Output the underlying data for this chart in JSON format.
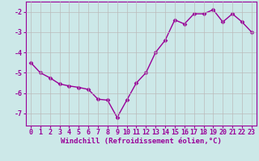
{
  "x": [
    0,
    1,
    2,
    3,
    4,
    5,
    6,
    7,
    8,
    9,
    10,
    11,
    12,
    13,
    14,
    15,
    16,
    17,
    18,
    19,
    20,
    21,
    22,
    23
  ],
  "y": [
    -4.5,
    -5.0,
    -5.25,
    -5.55,
    -5.65,
    -5.72,
    -5.82,
    -6.3,
    -6.35,
    -7.2,
    -6.35,
    -5.5,
    -5.0,
    -4.0,
    -3.4,
    -2.4,
    -2.6,
    -2.1,
    -2.1,
    -1.9,
    -2.5,
    -2.1,
    -2.5,
    -3.0
  ],
  "line_color": "#990099",
  "marker": "D",
  "markersize": 2.5,
  "linewidth": 1.0,
  "bg_color": "#cce8e8",
  "grid_color": "#bbbbbb",
  "xlabel": "Windchill (Refroidissement éolien,°C)",
  "xlabel_color": "#990099",
  "xlabel_fontsize": 6.5,
  "tick_label_color": "#990099",
  "tick_fontsize": 6,
  "ylim": [
    -7.6,
    -1.5
  ],
  "yticks": [
    -7,
    -6,
    -5,
    -4,
    -3,
    -2
  ],
  "xlim": [
    -0.5,
    23.5
  ],
  "xticks": [
    0,
    1,
    2,
    3,
    4,
    5,
    6,
    7,
    8,
    9,
    10,
    11,
    12,
    13,
    14,
    15,
    16,
    17,
    18,
    19,
    20,
    21,
    22,
    23
  ],
  "spine_color": "#990099"
}
